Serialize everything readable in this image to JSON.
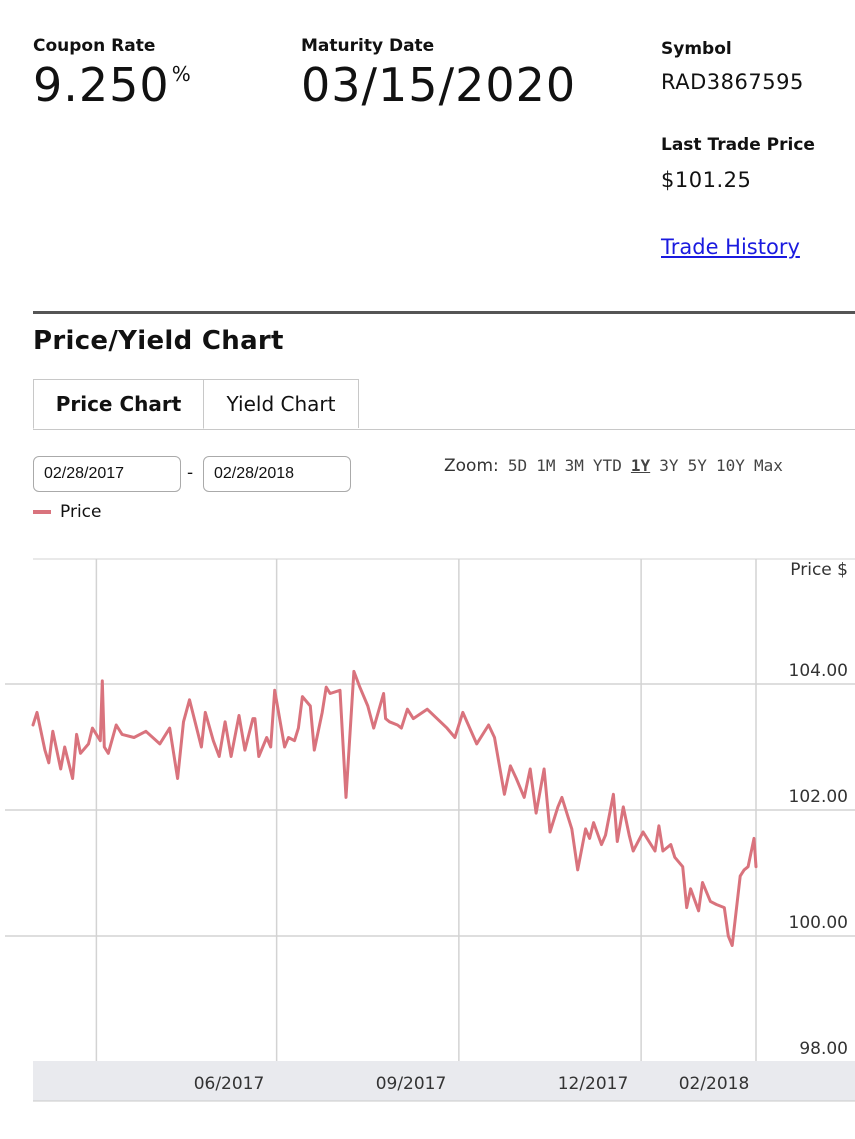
{
  "summary": {
    "coupon_label": "Coupon Rate",
    "coupon_value": "9.250",
    "coupon_unit": "%",
    "maturity_label": "Maturity Date",
    "maturity_value": "03/15/2020",
    "symbol_label": "Symbol",
    "symbol_value": "RAD3867595",
    "last_trade_label": "Last Trade Price",
    "last_trade_value": "$101.25",
    "trade_history_link": "Trade History"
  },
  "section_title": "Price/Yield Chart",
  "tabs": [
    {
      "label": "Price Chart",
      "active": true
    },
    {
      "label": "Yield Chart",
      "active": false
    }
  ],
  "date_range": {
    "start": "02/28/2017",
    "separator": "-",
    "end": "02/28/2018"
  },
  "zoom": {
    "label": "Zoom:",
    "options": [
      "5D",
      "1M",
      "3M",
      "YTD",
      "1Y",
      "3Y",
      "5Y",
      "10Y",
      "Max"
    ],
    "selected": "1Y"
  },
  "colors": {
    "series": "#d9737d",
    "grid": "#d3d3d3",
    "xaxis_band": "#e9eaee"
  },
  "chart_data": {
    "type": "line",
    "ylabel": "Price $",
    "ylim": [
      98,
      106
    ],
    "yticks": [
      "104.00",
      "102.00",
      "100.00",
      "98.00"
    ],
    "xlim": [
      "2017-02-28",
      "2018-02-28"
    ],
    "xtick_labels": [
      "06/2017",
      "09/2017",
      "12/2017",
      "02/2018"
    ],
    "grid": true,
    "legend_position": "top-left",
    "series": [
      {
        "name": "Price",
        "x": [
          "2017-02-28",
          "2017-03-02",
          "2017-03-06",
          "2017-03-08",
          "2017-03-10",
          "2017-03-14",
          "2017-03-16",
          "2017-03-20",
          "2017-03-22",
          "2017-03-24",
          "2017-03-28",
          "2017-03-30",
          "2017-04-03",
          "2017-04-04",
          "2017-04-05",
          "2017-04-07",
          "2017-04-11",
          "2017-04-14",
          "2017-04-20",
          "2017-04-26",
          "2017-05-03",
          "2017-05-08",
          "2017-05-12",
          "2017-05-15",
          "2017-05-18",
          "2017-05-24",
          "2017-05-26",
          "2017-05-30",
          "2017-06-02",
          "2017-06-05",
          "2017-06-08",
          "2017-06-12",
          "2017-06-15",
          "2017-06-19",
          "2017-06-20",
          "2017-06-22",
          "2017-06-26",
          "2017-06-28",
          "2017-06-30",
          "2017-07-05",
          "2017-07-07",
          "2017-07-10",
          "2017-07-12",
          "2017-07-14",
          "2017-07-18",
          "2017-07-20",
          "2017-07-24",
          "2017-07-26",
          "2017-07-28",
          "2017-08-02",
          "2017-08-05",
          "2017-08-09",
          "2017-08-12",
          "2017-08-16",
          "2017-08-19",
          "2017-08-24",
          "2017-08-25",
          "2017-08-27",
          "2017-08-31",
          "2017-09-02",
          "2017-09-05",
          "2017-09-08",
          "2017-09-15",
          "2017-09-25",
          "2017-09-29",
          "2017-10-03",
          "2017-10-10",
          "2017-10-16",
          "2017-10-19",
          "2017-10-24",
          "2017-10-27",
          "2017-10-30",
          "2017-11-03",
          "2017-11-06",
          "2017-11-09",
          "2017-11-13",
          "2017-11-16",
          "2017-11-20",
          "2017-11-22",
          "2017-11-27",
          "2017-11-30",
          "2017-12-04",
          "2017-12-06",
          "2017-12-08",
          "2017-12-12",
          "2017-12-14",
          "2017-12-18",
          "2017-12-20",
          "2017-12-23",
          "2017-12-26",
          "2017-12-28",
          "2018-01-02",
          "2018-01-04",
          "2018-01-08",
          "2018-01-10",
          "2018-01-12",
          "2018-01-16",
          "2018-01-18",
          "2018-01-22",
          "2018-01-24",
          "2018-01-26",
          "2018-01-30",
          "2018-02-01",
          "2018-02-05",
          "2018-02-08",
          "2018-02-12",
          "2018-02-14",
          "2018-02-16",
          "2018-02-20",
          "2018-02-22",
          "2018-02-24",
          "2018-02-27",
          "2018-02-28"
        ],
        "values": [
          103.35,
          103.55,
          102.95,
          102.75,
          103.25,
          102.65,
          103.0,
          102.5,
          103.2,
          102.9,
          103.05,
          103.3,
          103.1,
          104.05,
          103.0,
          102.9,
          103.35,
          103.2,
          103.15,
          103.25,
          103.05,
          103.3,
          102.5,
          103.4,
          103.75,
          103.0,
          103.55,
          103.1,
          102.85,
          103.4,
          102.85,
          103.5,
          102.95,
          103.45,
          103.45,
          102.85,
          103.15,
          103.0,
          103.9,
          103.0,
          103.15,
          103.1,
          103.3,
          103.8,
          103.65,
          102.95,
          103.55,
          103.95,
          103.85,
          103.9,
          102.2,
          104.2,
          103.95,
          103.65,
          103.3,
          103.85,
          103.45,
          103.4,
          103.35,
          103.3,
          103.6,
          103.45,
          103.6,
          103.3,
          103.15,
          103.55,
          103.05,
          103.35,
          103.15,
          102.25,
          102.7,
          102.5,
          102.2,
          102.65,
          101.95,
          102.65,
          101.65,
          102.05,
          102.2,
          101.7,
          101.05,
          101.7,
          101.55,
          101.8,
          101.45,
          101.6,
          102.25,
          101.5,
          102.05,
          101.6,
          101.35,
          101.65,
          101.55,
          101.35,
          101.75,
          101.35,
          101.45,
          101.25,
          101.1,
          100.45,
          100.75,
          100.4,
          100.85,
          100.55,
          100.5,
          100.45,
          100.0,
          99.85,
          100.95,
          101.05,
          101.1,
          101.55,
          101.1
        ]
      }
    ]
  }
}
